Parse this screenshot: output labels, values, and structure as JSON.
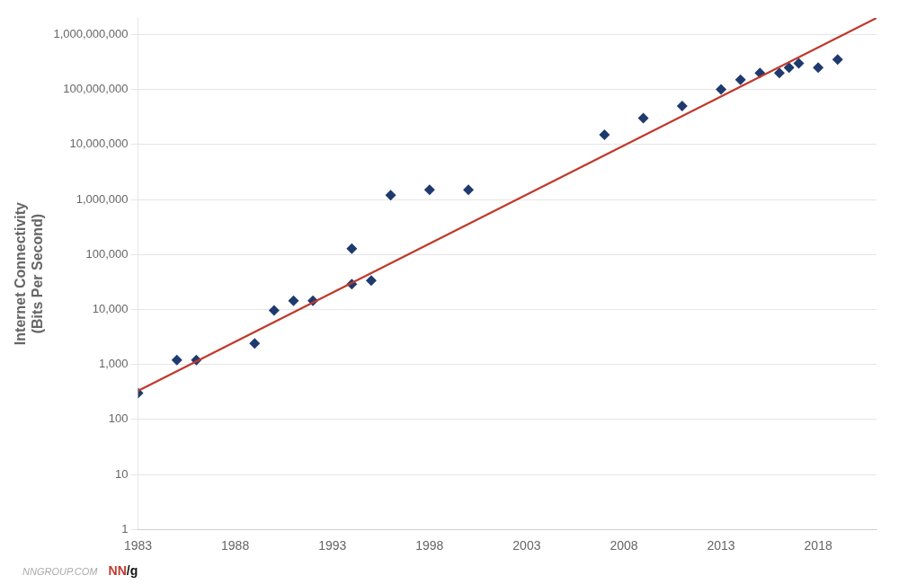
{
  "chart_data": {
    "type": "scatter",
    "ylabel": "Internet Connectivity\n(Bits Per Second)",
    "log": "y",
    "grid": "y",
    "xlim": [
      1983,
      2021
    ],
    "xticks": [
      1983,
      1988,
      1993,
      1998,
      2003,
      2008,
      2013,
      2018
    ],
    "ylim": [
      1,
      2000000000
    ],
    "yticks": [
      1,
      10,
      100,
      {
        "value": 1000,
        "label": "1,000"
      },
      {
        "value": 10000,
        "label": "10,000"
      },
      {
        "value": 100000,
        "label": "100,000"
      },
      {
        "value": 1000000,
        "label": "1,000,000"
      },
      {
        "value": 10000000,
        "label": "10,000,000"
      },
      {
        "value": 100000000,
        "label": "100,000,000"
      },
      {
        "value": 1000000000,
        "label": "1,000,000,000"
      }
    ],
    "series": [
      {
        "type": "line",
        "color": "#c0392b",
        "line_style": "solid",
        "x": [
          1983,
          2021
        ],
        "values": [
          330,
          2000000000
        ]
      },
      {
        "type": "scatter",
        "color": "#1f3a6e",
        "marker": "diamond",
        "x": [
          1983,
          1985,
          1986,
          1989,
          1990,
          1991,
          1992,
          1994,
          1994,
          1995,
          1996,
          1998,
          2000,
          2007,
          2009,
          2011,
          2013,
          2014,
          2015,
          2016,
          2016.5,
          2017,
          2018,
          2019
        ],
        "values": [
          300,
          1200,
          1200,
          2400,
          9600,
          14400,
          14400,
          128000,
          28800,
          33600,
          1200000,
          1500000,
          1500000,
          15000000,
          30000000,
          50000000,
          100000000,
          150000000,
          200000000,
          200000000,
          250000000,
          300000000,
          250000000,
          350000000
        ]
      }
    ],
    "annotations": [
      {
        "text": "NNGROUP.COM",
        "color": "#aaaaaa"
      },
      {
        "text": "NN",
        "color": "#c0392b"
      },
      {
        "text": "/g",
        "color": "#111111"
      }
    ]
  }
}
